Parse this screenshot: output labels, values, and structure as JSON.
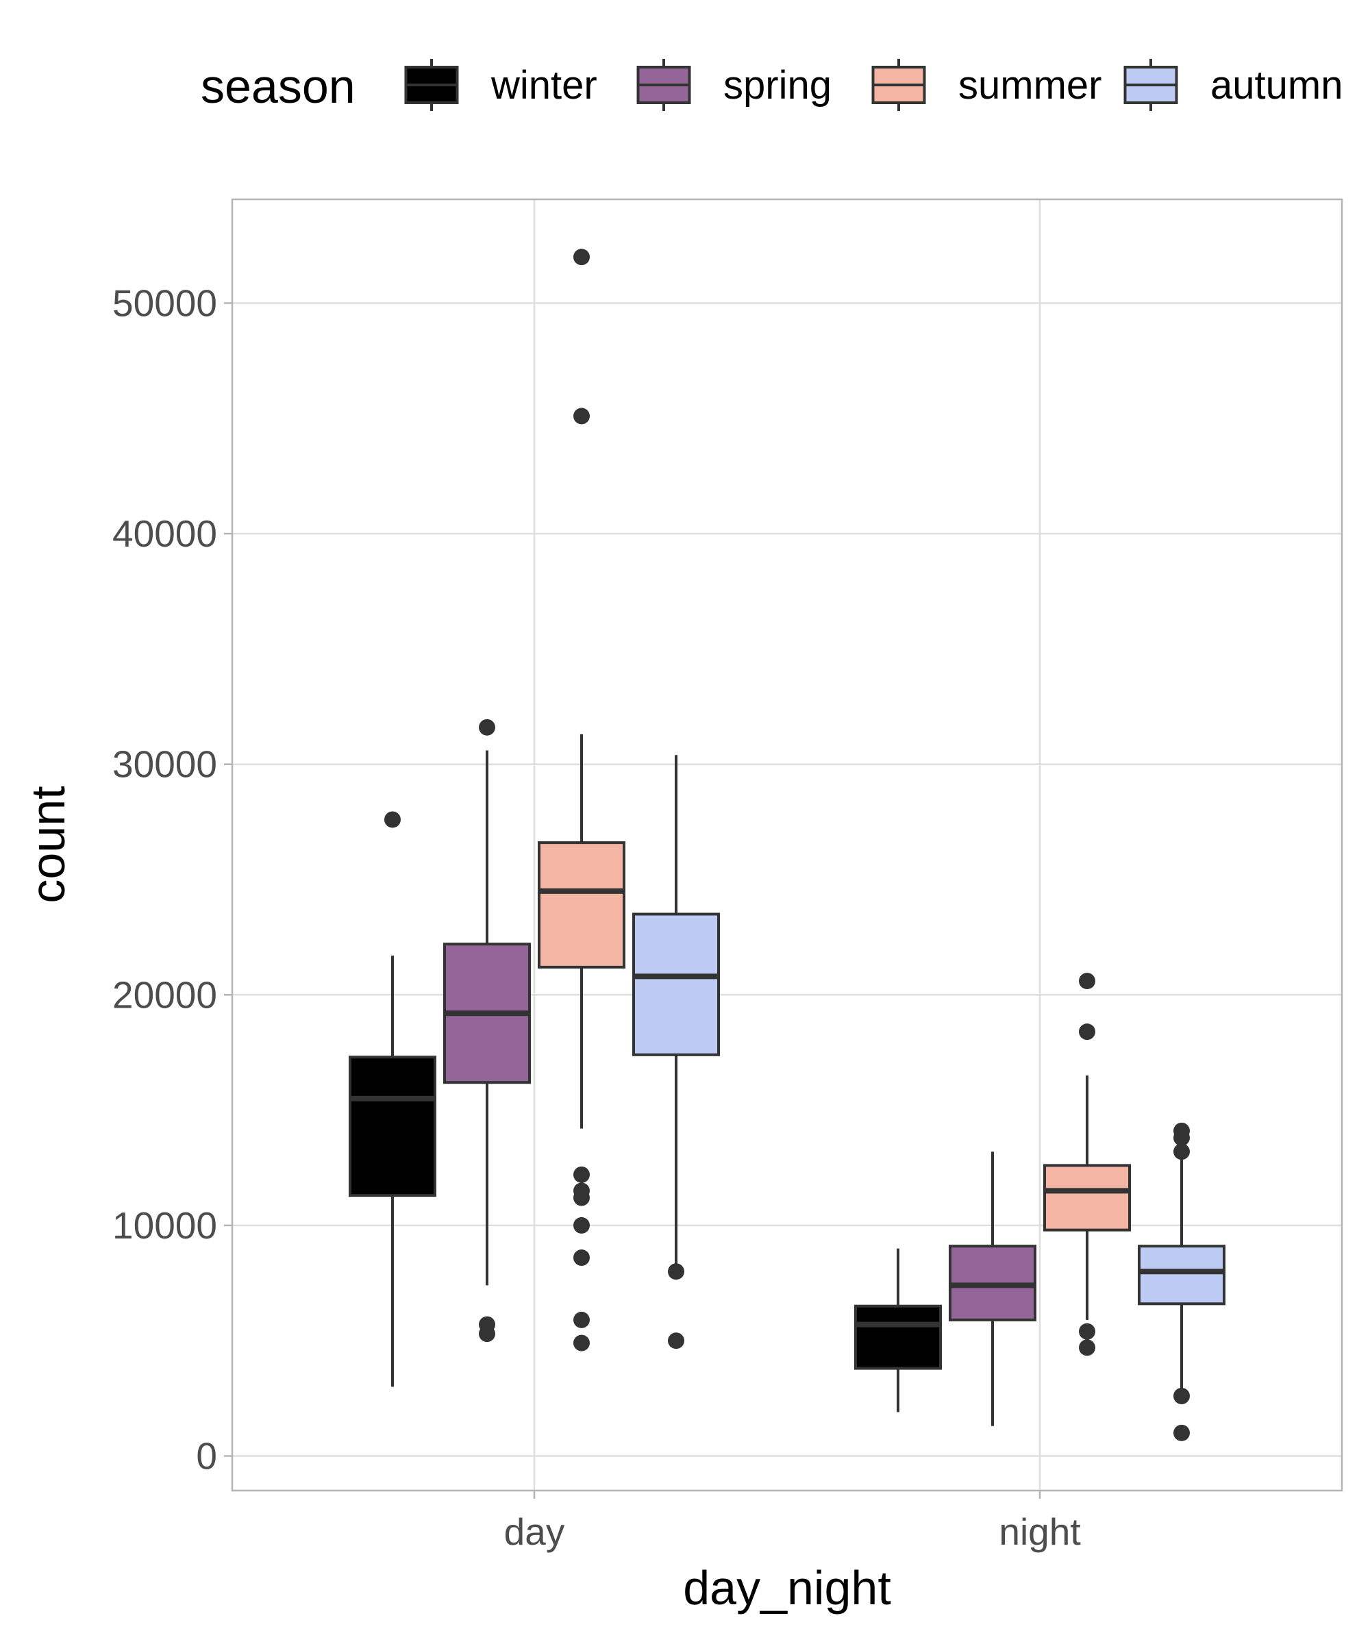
{
  "chart_data": {
    "type": "boxplot",
    "xlabel": "day_night",
    "ylabel": "count",
    "categories": [
      "day",
      "night"
    ],
    "ylim": [
      -1500,
      54500
    ],
    "yticks": [
      0,
      10000,
      20000,
      30000,
      40000,
      50000
    ],
    "y_tick_labels": [
      "0",
      "10000",
      "20000",
      "30000",
      "40000",
      "50000"
    ],
    "grid": true,
    "legend": {
      "title": "season",
      "position": "top",
      "entries": [
        "winter",
        "spring",
        "summer",
        "autumn"
      ]
    },
    "colors": {
      "winter": "#000000",
      "spring": "#946599",
      "summer": "#f5b5a4",
      "autumn": "#bccaf4"
    },
    "series": [
      {
        "name": "winter",
        "boxes": [
          {
            "category": "day",
            "min": 3000,
            "q1": 11300,
            "median": 15500,
            "q3": 17300,
            "max": 21700,
            "outliers": [
              27600
            ]
          },
          {
            "category": "night",
            "min": 1900,
            "q1": 3800,
            "median": 5700,
            "q3": 6500,
            "max": 9000,
            "outliers": []
          }
        ]
      },
      {
        "name": "spring",
        "boxes": [
          {
            "category": "day",
            "min": 7400,
            "q1": 16200,
            "median": 19200,
            "q3": 22200,
            "max": 30600,
            "outliers": [
              31600,
              5700,
              5300
            ]
          },
          {
            "category": "night",
            "min": 1300,
            "q1": 5900,
            "median": 7400,
            "q3": 9100,
            "max": 13200,
            "outliers": []
          }
        ]
      },
      {
        "name": "summer",
        "boxes": [
          {
            "category": "day",
            "min": 14200,
            "q1": 21200,
            "median": 24500,
            "q3": 26600,
            "max": 31300,
            "outliers": [
              52000,
              45100,
              12200,
              11500,
              11200,
              10000,
              8600,
              5900,
              4900
            ]
          },
          {
            "category": "night",
            "min": 5900,
            "q1": 9800,
            "median": 11500,
            "q3": 12600,
            "max": 16500,
            "outliers": [
              20600,
              18400,
              5400,
              4700
            ]
          }
        ]
      },
      {
        "name": "autumn",
        "boxes": [
          {
            "category": "day",
            "min": 8000,
            "q1": 17400,
            "median": 20800,
            "q3": 23500,
            "max": 30400,
            "outliers": [
              8000,
              5000
            ]
          },
          {
            "category": "night",
            "min": 2800,
            "q1": 6600,
            "median": 8000,
            "q3": 9100,
            "max": 12900,
            "outliers": [
              14100,
              13800,
              13200,
              2600,
              1000
            ]
          }
        ]
      }
    ]
  }
}
